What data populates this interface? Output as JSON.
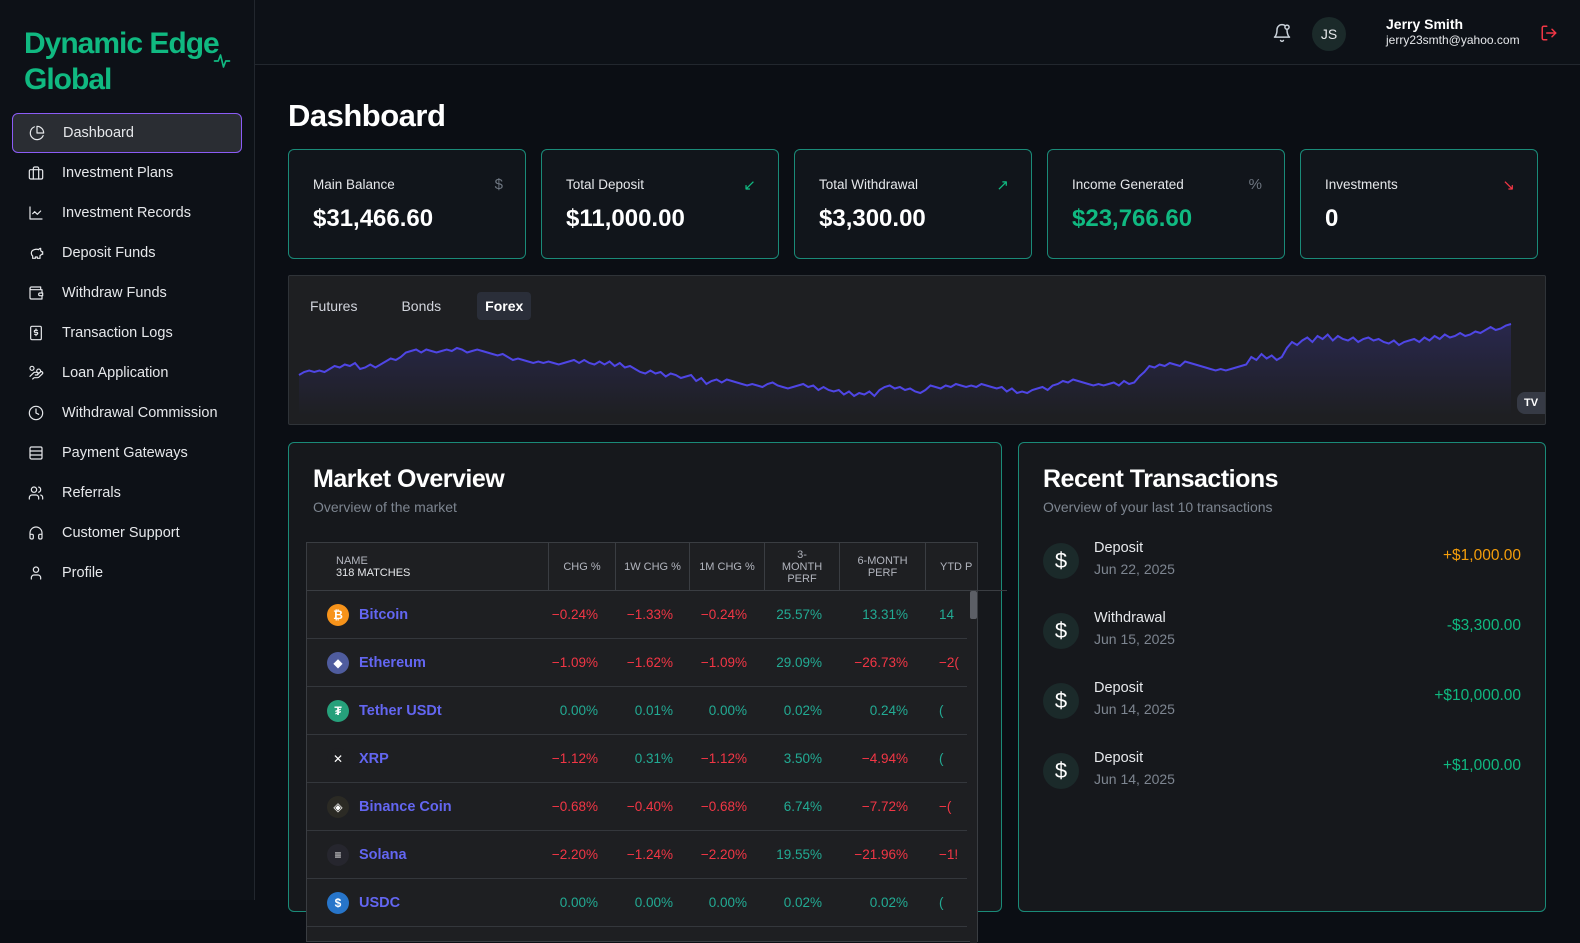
{
  "brand": {
    "name": "Dynamic Edge Global"
  },
  "nav": [
    {
      "label": "Dashboard",
      "icon": "pie-chart-icon",
      "active": true
    },
    {
      "label": "Investment Plans",
      "icon": "briefcase-icon"
    },
    {
      "label": "Investment Records",
      "icon": "line-chart-icon"
    },
    {
      "label": "Deposit Funds",
      "icon": "piggy-bank-icon"
    },
    {
      "label": "Withdraw Funds",
      "icon": "wallet-icon"
    },
    {
      "label": "Transaction Logs",
      "icon": "receipt-icon"
    },
    {
      "label": "Loan Application",
      "icon": "hand-coins-icon"
    },
    {
      "label": "Withdrawal Commission",
      "icon": "clock-icon"
    },
    {
      "label": "Payment Gateways",
      "icon": "card-icon"
    },
    {
      "label": "Referrals",
      "icon": "users-icon"
    },
    {
      "label": "Customer Support",
      "icon": "headset-icon"
    },
    {
      "label": "Profile",
      "icon": "user-icon"
    }
  ],
  "header": {
    "user_initials": "JS",
    "user_name": "Jerry Smith",
    "user_email": "jerry23smth@yahoo.com"
  },
  "page_title": "Dashboard",
  "stats": [
    {
      "label": "Main Balance",
      "value": "$31,466.60",
      "icon": "$",
      "icon_color": "#6e7681"
    },
    {
      "label": "Total Deposit",
      "value": "$11,000.00",
      "icon": "↙",
      "icon_color": "#10b981"
    },
    {
      "label": "Total Withdrawal",
      "value": "$3,300.00",
      "icon": "↗",
      "icon_color": "#10b981"
    },
    {
      "label": "Income Generated",
      "value": "$23,766.60",
      "icon": "%",
      "icon_color": "#6e7681",
      "green": true
    },
    {
      "label": "Investments",
      "value": "0",
      "icon": "↘",
      "icon_color": "#f23645"
    }
  ],
  "chart_tabs": [
    {
      "label": "Futures"
    },
    {
      "label": "Bonds"
    },
    {
      "label": "Forex",
      "active": true
    }
  ],
  "chart_widget": {
    "logo": "TV"
  },
  "chart_data": {
    "type": "area",
    "series": [
      {
        "color": "#4f46e5",
        "values": [
          18,
          20,
          21,
          20,
          21,
          20,
          22,
          24,
          23,
          25,
          24,
          26,
          22,
          23,
          25,
          23,
          25,
          27,
          29,
          28,
          30,
          33,
          34,
          35,
          33,
          35,
          34,
          33,
          34,
          35,
          34,
          36,
          35,
          33,
          34,
          35,
          34,
          33,
          32,
          31,
          32,
          30,
          28,
          29,
          28,
          27,
          26,
          27,
          26,
          27,
          26,
          25,
          26,
          27,
          28,
          26,
          28,
          26,
          25,
          27,
          25,
          27,
          24,
          26,
          23,
          24,
          22,
          20,
          19,
          21,
          19,
          20,
          17,
          19,
          18,
          16,
          17,
          18,
          14,
          16,
          12,
          14,
          15,
          13,
          15,
          14,
          13,
          12,
          11,
          12,
          11,
          10,
          12,
          13,
          11,
          10,
          9,
          10,
          11,
          12,
          10,
          11,
          8,
          10,
          8,
          7,
          8,
          5,
          7,
          4,
          6,
          5,
          7,
          4,
          8,
          10,
          11,
          9,
          10,
          8,
          9,
          7,
          6,
          8,
          11,
          10,
          9,
          11,
          10,
          12,
          11,
          10,
          11,
          10,
          12,
          11,
          10,
          9,
          10,
          7,
          9,
          6,
          7,
          6,
          8,
          9,
          10,
          8,
          11,
          12,
          14,
          13,
          15,
          14,
          13,
          12,
          11,
          12,
          11,
          12,
          13,
          11,
          14,
          12,
          13,
          17,
          20,
          24,
          23,
          25,
          24,
          26,
          25,
          24,
          27,
          26,
          25,
          24,
          23,
          22,
          21,
          22,
          21,
          22,
          23,
          24,
          25,
          30,
          28,
          32,
          29,
          31,
          28,
          30,
          36,
          40,
          38,
          41,
          43,
          40,
          44,
          42,
          45,
          41,
          44,
          42,
          41,
          43,
          40,
          42,
          43,
          41,
          42,
          40,
          39,
          41,
          38,
          40,
          41,
          42,
          40,
          43,
          41,
          44,
          42,
          45,
          43,
          44,
          46,
          44,
          45,
          47,
          46,
          48,
          50,
          48,
          49,
          51,
          52
        ]
      }
    ]
  },
  "market": {
    "title": "Market Overview",
    "subtitle": "Overview of the market",
    "headers": {
      "name": "NAME",
      "matches": "318 MATCHES",
      "chg": "CHG %",
      "chg_1w": "1W CHG %",
      "chg_1m": "1M CHG %",
      "perf_3m": "3-MONTH PERF",
      "perf_6m": "6-MONTH PERF",
      "ytd": "YTD P"
    },
    "rows": [
      {
        "name": "Bitcoin",
        "icon": "bitcoin-icon",
        "icon_color": "#f7931a",
        "glyph": "₿",
        "chg": "−0.24%",
        "w": "−1.33%",
        "m": "−0.24%",
        "m3": "25.57%",
        "m6": "13.31%",
        "ytd": "14"
      },
      {
        "name": "Ethereum",
        "icon": "ethereum-icon",
        "icon_color": "#4f5c9e",
        "glyph": "◆",
        "chg": "−1.09%",
        "w": "−1.62%",
        "m": "−1.09%",
        "m3": "29.09%",
        "m6": "−26.73%",
        "ytd": "−2("
      },
      {
        "name": "Tether USDt",
        "icon": "tether-icon",
        "icon_color": "#26a17b",
        "glyph": "₮",
        "chg": "0.00%",
        "w": "0.01%",
        "m": "0.00%",
        "m3": "0.02%",
        "m6": "0.24%",
        "ytd": "("
      },
      {
        "name": "XRP",
        "icon": "xrp-icon",
        "icon_color": "#1e1f22",
        "glyph": "✕",
        "chg": "−1.12%",
        "w": "0.31%",
        "m": "−1.12%",
        "m3": "3.50%",
        "m6": "−4.94%",
        "ytd": "("
      },
      {
        "name": "Binance Coin",
        "icon": "binance-icon",
        "icon_color": "#2b2a24",
        "glyph": "◈",
        "chg": "−0.68%",
        "w": "−0.40%",
        "m": "−0.68%",
        "m3": "6.74%",
        "m6": "−7.72%",
        "ytd": "−("
      },
      {
        "name": "Solana",
        "icon": "solana-icon",
        "icon_color": "#26262e",
        "glyph": "≡",
        "chg": "−2.20%",
        "w": "−1.24%",
        "m": "−2.20%",
        "m3": "19.55%",
        "m6": "−21.96%",
        "ytd": "−1!"
      },
      {
        "name": "USDC",
        "icon": "usdc-icon",
        "icon_color": "#2775ca",
        "glyph": "$",
        "chg": "0.00%",
        "w": "0.00%",
        "m": "0.00%",
        "m3": "0.02%",
        "m6": "0.02%",
        "ytd": "("
      }
    ]
  },
  "transactions": {
    "title": "Recent Transactions",
    "subtitle": "Overview of your last 10 transactions",
    "items": [
      {
        "type": "Deposit",
        "date": "Jun 22, 2025",
        "amount": "+$1,000.00",
        "color": "#f59e0b"
      },
      {
        "type": "Withdrawal",
        "date": "Jun 15, 2025",
        "amount": "-$3,300.00",
        "color": "#10b981"
      },
      {
        "type": "Deposit",
        "date": "Jun 14, 2025",
        "amount": "+$10,000.00",
        "color": "#10b981"
      },
      {
        "type": "Deposit",
        "date": "Jun 14, 2025",
        "amount": "+$1,000.00",
        "color": "#10b981"
      }
    ]
  }
}
